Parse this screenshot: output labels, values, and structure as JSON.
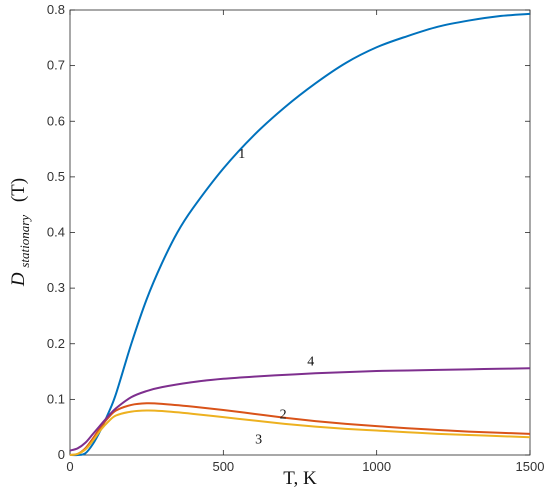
{
  "chart_data": {
    "type": "line",
    "xlabel": "T, K",
    "ylabel_main": "D",
    "ylabel_sub": "stationary",
    "ylabel_tail": "(T)",
    "xlim": [
      0,
      1500
    ],
    "ylim": [
      0,
      0.8
    ],
    "x_ticks": [
      0,
      500,
      1000,
      1500
    ],
    "y_ticks": [
      0,
      0.1,
      0.2,
      0.3,
      0.4,
      0.5,
      0.6,
      0.7,
      0.8
    ],
    "x_tick_labels": [
      "0",
      "500",
      "1000",
      "1500"
    ],
    "y_tick_labels": [
      "0",
      "0.1",
      "0.2",
      "0.3",
      "0.4",
      "0.5",
      "0.6",
      "0.7",
      "0.8"
    ],
    "grid": false,
    "series": [
      {
        "name": "1",
        "color": "#0072BD",
        "x": [
          0,
          25,
          50,
          75,
          100,
          125,
          150,
          200,
          250,
          300,
          350,
          400,
          500,
          600,
          700,
          800,
          900,
          1000,
          1100,
          1200,
          1300,
          1400,
          1500
        ],
        "y": [
          0,
          0,
          0.003,
          0.02,
          0.045,
          0.075,
          0.11,
          0.2,
          0.28,
          0.345,
          0.4,
          0.443,
          0.515,
          0.575,
          0.625,
          0.668,
          0.705,
          0.733,
          0.753,
          0.77,
          0.781,
          0.789,
          0.793
        ],
        "label_at": [
          560,
          0.543
        ]
      },
      {
        "name": "2",
        "color": "#D95319",
        "x": [
          0,
          25,
          50,
          75,
          100,
          125,
          150,
          200,
          250,
          300,
          400,
          500,
          600,
          700,
          800,
          900,
          1000,
          1100,
          1200,
          1300,
          1400,
          1500
        ],
        "y": [
          0,
          0.002,
          0.012,
          0.03,
          0.05,
          0.067,
          0.08,
          0.09,
          0.093,
          0.092,
          0.087,
          0.081,
          0.074,
          0.067,
          0.061,
          0.056,
          0.052,
          0.048,
          0.045,
          0.042,
          0.04,
          0.038
        ],
        "label_at": [
          695,
          0.075
        ]
      },
      {
        "name": "3",
        "color": "#EDB120",
        "x": [
          0,
          25,
          50,
          75,
          100,
          125,
          150,
          200,
          250,
          300,
          400,
          500,
          600,
          700,
          800,
          900,
          1000,
          1100,
          1200,
          1300,
          1400,
          1500
        ],
        "y": [
          0,
          0.002,
          0.01,
          0.026,
          0.045,
          0.06,
          0.071,
          0.078,
          0.08,
          0.079,
          0.074,
          0.068,
          0.062,
          0.056,
          0.051,
          0.047,
          0.044,
          0.041,
          0.038,
          0.036,
          0.034,
          0.032
        ],
        "label_at": [
          615,
          0.03
        ]
      },
      {
        "name": "4",
        "color": "#7E2F8E",
        "x": [
          0,
          25,
          50,
          75,
          100,
          125,
          150,
          200,
          250,
          300,
          400,
          500,
          600,
          700,
          800,
          900,
          1000,
          1100,
          1200,
          1300,
          1400,
          1500
        ],
        "y": [
          0.008,
          0.012,
          0.022,
          0.038,
          0.054,
          0.07,
          0.084,
          0.104,
          0.115,
          0.122,
          0.131,
          0.137,
          0.141,
          0.144,
          0.147,
          0.149,
          0.151,
          0.152,
          0.153,
          0.154,
          0.155,
          0.156
        ],
        "label_at": [
          785,
          0.17
        ]
      }
    ]
  }
}
